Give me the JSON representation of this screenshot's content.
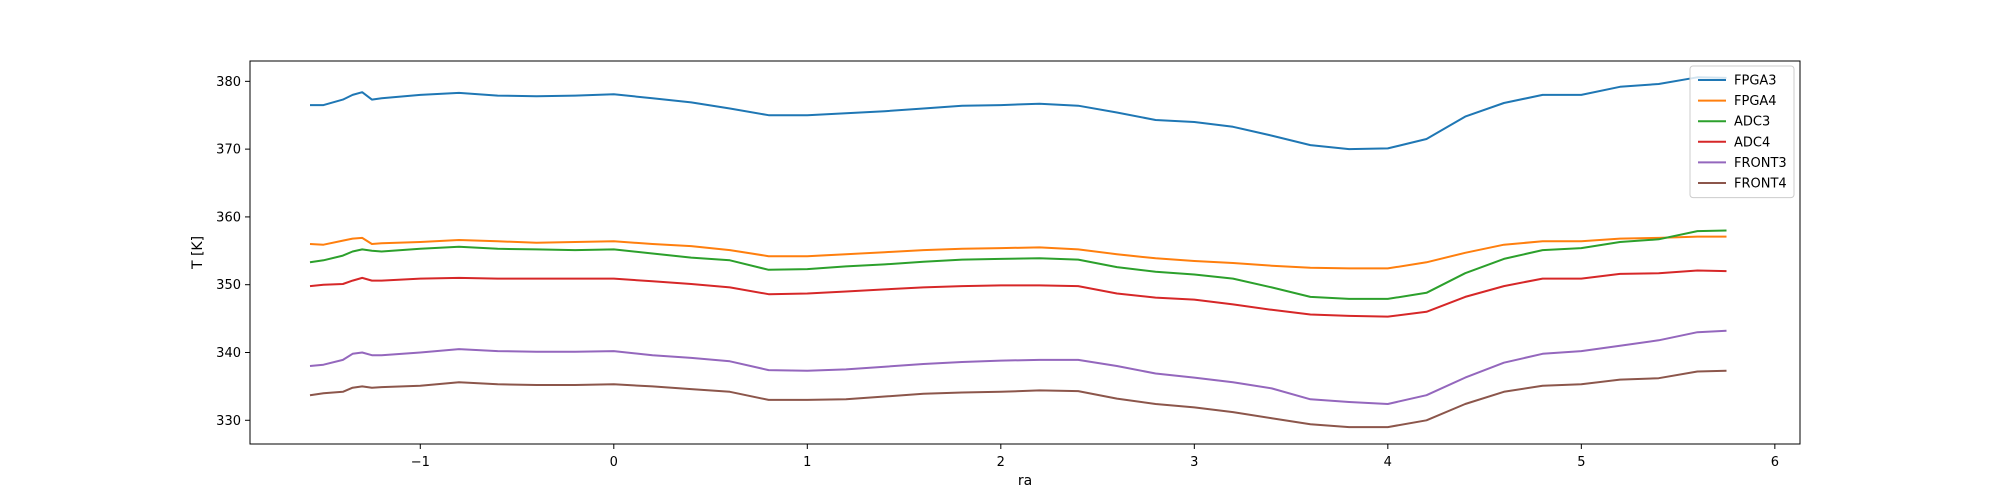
{
  "chart_data": {
    "type": "line",
    "title": "",
    "xlabel": "ra",
    "ylabel": "T [K]",
    "xlim": [
      -1.88,
      6.13
    ],
    "ylim": [
      326.5,
      383.0
    ],
    "xticks": [
      -1,
      0,
      1,
      2,
      3,
      4,
      5,
      6
    ],
    "yticks": [
      330,
      340,
      350,
      360,
      370,
      380
    ],
    "xtick_labels": [
      "−1",
      "0",
      "1",
      "2",
      "3",
      "4",
      "5",
      "6"
    ],
    "ytick_labels": [
      "330",
      "340",
      "350",
      "360",
      "370",
      "380"
    ],
    "grid": false,
    "legend_position": "top-right",
    "x": [
      -1.57,
      -1.5,
      -1.4,
      -1.35,
      -1.3,
      -1.25,
      -1.2,
      -1.0,
      -0.8,
      -0.6,
      -0.4,
      -0.2,
      0.0,
      0.2,
      0.4,
      0.6,
      0.8,
      1.0,
      1.2,
      1.4,
      1.6,
      1.8,
      2.0,
      2.2,
      2.4,
      2.6,
      2.8,
      3.0,
      3.2,
      3.4,
      3.6,
      3.8,
      4.0,
      4.2,
      4.4,
      4.6,
      4.8,
      5.0,
      5.2,
      5.4,
      5.6,
      5.75
    ],
    "series": [
      {
        "name": "FPGA3",
        "color": "#1f77b4",
        "values": [
          376.5,
          376.5,
          377.3,
          378.0,
          378.4,
          377.3,
          377.5,
          378.0,
          378.3,
          377.9,
          377.8,
          377.9,
          378.1,
          377.5,
          376.9,
          376.0,
          375.0,
          375.0,
          375.3,
          375.6,
          376.0,
          376.4,
          376.5,
          376.7,
          376.4,
          375.4,
          374.3,
          374.0,
          373.3,
          372.0,
          370.6,
          370.0,
          370.1,
          371.5,
          374.8,
          376.8,
          378.0,
          378.0,
          379.2,
          379.6,
          380.6,
          380.5
        ]
      },
      {
        "name": "FPGA4",
        "color": "#ff7f0e",
        "values": [
          356.0,
          355.9,
          356.5,
          356.8,
          356.9,
          356.0,
          356.1,
          356.3,
          356.6,
          356.4,
          356.2,
          356.3,
          356.4,
          356.0,
          355.7,
          355.1,
          354.2,
          354.2,
          354.5,
          354.8,
          355.1,
          355.3,
          355.4,
          355.5,
          355.2,
          354.5,
          353.9,
          353.5,
          353.2,
          352.8,
          352.5,
          352.4,
          352.4,
          353.3,
          354.7,
          355.9,
          356.4,
          356.4,
          356.8,
          356.9,
          357.1,
          357.1
        ]
      },
      {
        "name": "ADC3",
        "color": "#2ca02c",
        "values": [
          353.3,
          353.6,
          354.3,
          354.9,
          355.2,
          355.0,
          354.9,
          355.3,
          355.6,
          355.3,
          355.2,
          355.1,
          355.2,
          354.6,
          354.0,
          353.6,
          352.2,
          352.3,
          352.7,
          353.0,
          353.4,
          353.7,
          353.8,
          353.9,
          353.7,
          352.6,
          351.9,
          351.5,
          350.9,
          349.6,
          348.2,
          347.9,
          347.9,
          348.8,
          351.7,
          353.8,
          355.1,
          355.4,
          356.3,
          356.7,
          357.9,
          358.0
        ]
      },
      {
        "name": "ADC4",
        "color": "#d62728",
        "values": [
          349.8,
          350.0,
          350.1,
          350.6,
          351.0,
          350.6,
          350.6,
          350.9,
          351.0,
          350.9,
          350.9,
          350.9,
          350.9,
          350.5,
          350.1,
          349.6,
          348.6,
          348.7,
          349.0,
          349.3,
          349.6,
          349.8,
          349.9,
          349.9,
          349.8,
          348.7,
          348.1,
          347.8,
          347.1,
          346.3,
          345.6,
          345.4,
          345.3,
          346.0,
          348.2,
          349.8,
          350.9,
          350.9,
          351.6,
          351.7,
          352.1,
          352.0
        ]
      },
      {
        "name": "FRONT3",
        "color": "#9467bd",
        "values": [
          338.0,
          338.2,
          338.9,
          339.8,
          340.0,
          339.6,
          339.6,
          340.0,
          340.5,
          340.2,
          340.1,
          340.1,
          340.2,
          339.6,
          339.2,
          338.7,
          337.4,
          337.3,
          337.5,
          337.9,
          338.3,
          338.6,
          338.8,
          338.9,
          338.9,
          338.0,
          336.9,
          336.3,
          335.6,
          334.7,
          333.1,
          332.7,
          332.4,
          333.7,
          336.3,
          338.5,
          339.8,
          340.2,
          341.0,
          341.8,
          343.0,
          343.2
        ]
      },
      {
        "name": "FRONT4",
        "color": "#8c564b",
        "values": [
          333.7,
          334.0,
          334.2,
          334.8,
          335.0,
          334.8,
          334.9,
          335.1,
          335.6,
          335.3,
          335.2,
          335.2,
          335.3,
          335.0,
          334.6,
          334.2,
          333.0,
          333.0,
          333.1,
          333.5,
          333.9,
          334.1,
          334.2,
          334.4,
          334.3,
          333.2,
          332.4,
          331.9,
          331.2,
          330.3,
          329.4,
          329.0,
          329.0,
          330.0,
          332.4,
          334.2,
          335.1,
          335.3,
          336.0,
          336.2,
          337.2,
          337.3
        ]
      }
    ]
  }
}
